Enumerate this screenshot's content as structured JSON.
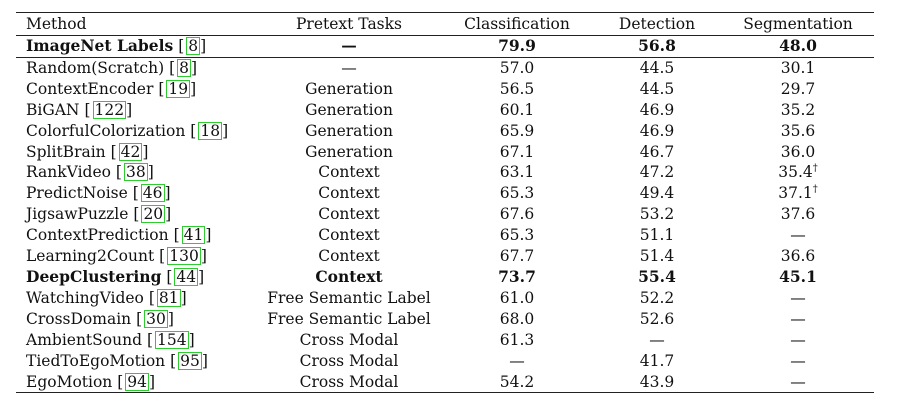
{
  "header": {
    "method": "Method",
    "pretext": "Pretext Tasks",
    "classification": "Classification",
    "detection": "Detection",
    "segmentation": "Segmentation"
  },
  "rows": [
    {
      "name": "ImageNet Labels",
      "cite": "8",
      "task": "—",
      "cls": "79.9",
      "det": "56.8",
      "seg": "48.0",
      "seg_sup": "",
      "bold": true,
      "cite_bold_name": true
    },
    {
      "name": "Random(Scratch)",
      "cite": "8",
      "task": "—",
      "cls": "57.0",
      "det": "44.5",
      "seg": "30.1",
      "seg_sup": ""
    },
    {
      "name": "ContextEncoder",
      "cite": "19",
      "task": "Generation",
      "cls": "56.5",
      "det": "44.5",
      "seg": "29.7",
      "seg_sup": ""
    },
    {
      "name": "BiGAN",
      "cite": "122",
      "task": "Generation",
      "cls": "60.1",
      "det": "46.9",
      "seg": "35.2",
      "seg_sup": ""
    },
    {
      "name": "ColorfulColorization",
      "cite": "18",
      "task": "Generation",
      "cls": "65.9",
      "det": "46.9",
      "seg": "35.6",
      "seg_sup": ""
    },
    {
      "name": "SplitBrain",
      "cite": "42",
      "task": "Generation",
      "cls": "67.1",
      "det": "46.7",
      "seg": "36.0",
      "seg_sup": ""
    },
    {
      "name": "RankVideo",
      "cite": "38",
      "task": "Context",
      "cls": "63.1",
      "det": "47.2",
      "seg": "35.4",
      "seg_sup": "†"
    },
    {
      "name": "PredictNoise",
      "cite": "46",
      "task": "Context",
      "cls": "65.3",
      "det": "49.4",
      "seg": "37.1",
      "seg_sup": "†"
    },
    {
      "name": "JigsawPuzzle",
      "cite": "20",
      "task": "Context",
      "cls": "67.6",
      "det": "53.2",
      "seg": "37.6",
      "seg_sup": ""
    },
    {
      "name": "ContextPrediction",
      "cite": "41",
      "task": "Context",
      "cls": "65.3",
      "det": "51.1",
      "seg": "—",
      "seg_sup": ""
    },
    {
      "name": "Learning2Count",
      "cite": "130",
      "task": "Context",
      "cls": "67.7",
      "det": "51.4",
      "seg": "36.6",
      "seg_sup": ""
    },
    {
      "name": "DeepClustering",
      "cite": "44",
      "task": "Context",
      "cls": "73.7",
      "det": "55.4",
      "seg": "45.1",
      "seg_sup": "",
      "bold": true
    },
    {
      "name": "WatchingVideo",
      "cite": "81",
      "task": "Free Semantic Label",
      "cls": "61.0",
      "det": "52.2",
      "seg": "—",
      "seg_sup": ""
    },
    {
      "name": "CrossDomain",
      "cite": "30",
      "task": "Free Semantic Label",
      "cls": "68.0",
      "det": "52.6",
      "seg": "—",
      "seg_sup": ""
    },
    {
      "name": "AmbientSound",
      "cite": "154",
      "task": "Cross Modal",
      "cls": "61.3",
      "det": "—",
      "seg": "—",
      "seg_sup": ""
    },
    {
      "name": "TiedToEgoMotion",
      "cite": "95",
      "task": "Cross Modal",
      "cls": "—",
      "det": "41.7",
      "seg": "—",
      "seg_sup": ""
    },
    {
      "name": "EgoMotion",
      "cite": "94",
      "task": "Cross Modal",
      "cls": "54.2",
      "det": "43.9",
      "seg": "—",
      "seg_sup": ""
    }
  ]
}
